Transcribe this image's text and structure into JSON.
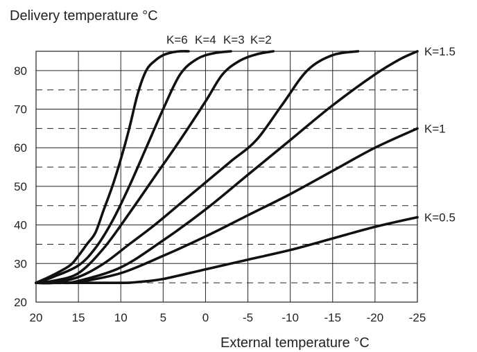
{
  "chart_data": {
    "type": "line",
    "title": "Delivery temperature °C",
    "xlabel": "External temperature °C",
    "ylabel": "Delivery temperature °C",
    "xlim": [
      20,
      -25
    ],
    "ylim": [
      20,
      85
    ],
    "x_reversed": true,
    "x_ticks": [
      20,
      15,
      10,
      5,
      0,
      -5,
      -10,
      -15,
      -20,
      -25
    ],
    "y_ticks": [
      20,
      30,
      40,
      50,
      60,
      70,
      80
    ],
    "y_dashed_gridlines": [
      25,
      35,
      45,
      55,
      65,
      75
    ],
    "grid": true,
    "line_color": "#111111",
    "series": [
      {
        "name": "K=6",
        "label_position": "top",
        "x": [
          20,
          18,
          16,
          15,
          14,
          13,
          12,
          11,
          10,
          9,
          8,
          7,
          6,
          5,
          4,
          3,
          2
        ],
        "y": [
          25,
          27,
          29.5,
          32,
          35,
          38,
          44,
          50,
          57,
          65,
          74,
          80,
          82.5,
          84,
          84.7,
          85,
          85
        ]
      },
      {
        "name": "K=4",
        "label_position": "top",
        "x": [
          20,
          18,
          15,
          13,
          11,
          9,
          7,
          5,
          3,
          1,
          -1,
          -3
        ],
        "y": [
          25,
          26.5,
          29.5,
          34,
          41,
          50,
          60,
          70,
          79,
          83,
          84.5,
          85
        ]
      },
      {
        "name": "K=3",
        "label_position": "top",
        "x": [
          20,
          18,
          15,
          12,
          9,
          6,
          3,
          0,
          -2,
          -4,
          -6,
          -8
        ],
        "y": [
          25,
          25.5,
          27.5,
          34,
          43,
          52.5,
          62,
          72,
          79,
          82.5,
          84.2,
          85
        ]
      },
      {
        "name": "K=2",
        "label_position": "top",
        "x": [
          20,
          18,
          15,
          12,
          9,
          6,
          3,
          0,
          -3,
          -6,
          -9,
          -12,
          -15,
          -18
        ],
        "y": [
          25,
          25,
          26.5,
          30,
          35,
          40,
          45.5,
          51,
          56.5,
          62,
          71,
          80,
          84,
          85
        ]
      },
      {
        "name": "K=1.5",
        "label_position": "right",
        "x": [
          20,
          17,
          15,
          10,
          5,
          0,
          -5,
          -10,
          -15,
          -20,
          -23,
          -25
        ],
        "y": [
          25,
          25,
          25.5,
          29,
          36,
          44,
          53,
          62,
          71,
          79,
          83,
          85
        ]
      },
      {
        "name": "K=1",
        "label_position": "right",
        "x": [
          20,
          17,
          15,
          10,
          5,
          0,
          -5,
          -10,
          -15,
          -20,
          -25
        ],
        "y": [
          25,
          25,
          25.2,
          27.5,
          32,
          37,
          42.5,
          48,
          54,
          60,
          65
        ]
      },
      {
        "name": "K=0.5",
        "label_position": "right",
        "x": [
          20,
          15,
          10,
          8,
          5,
          0,
          -5,
          -10,
          -15,
          -20,
          -25
        ],
        "y": [
          25,
          25,
          25,
          25.2,
          26,
          28.5,
          31,
          33.5,
          36.5,
          39.5,
          42
        ]
      }
    ]
  }
}
